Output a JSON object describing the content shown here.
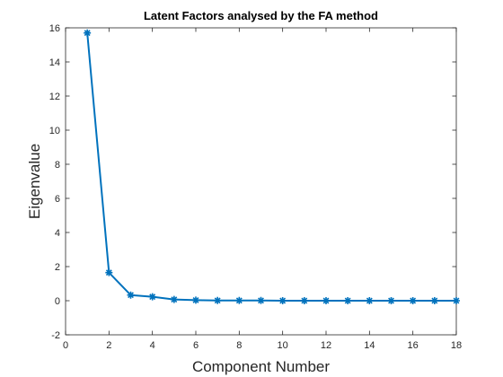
{
  "chart_data": {
    "type": "line",
    "title": "Latent Factors analysed by the FA method",
    "xlabel": "Component Number",
    "ylabel": "Eigenvalue",
    "xlim": [
      0,
      18
    ],
    "ylim": [
      -2,
      16
    ],
    "xticks": [
      0,
      2,
      4,
      6,
      8,
      10,
      12,
      14,
      16,
      18
    ],
    "yticks": [
      -2,
      0,
      2,
      4,
      6,
      8,
      10,
      12,
      14,
      16
    ],
    "grid": false,
    "marker": "asterisk",
    "series": [
      {
        "x": [
          1,
          2,
          3,
          4,
          5,
          6,
          7,
          8,
          9,
          10,
          11,
          12,
          13,
          14,
          15,
          16,
          17,
          18
        ],
        "values": [
          15.7,
          1.65,
          0.33,
          0.23,
          0.07,
          0.03,
          0.01,
          0.01,
          0.01,
          0.0,
          0.0,
          0.0,
          0.0,
          0.0,
          0.0,
          0.0,
          0.0,
          0.0
        ],
        "color": "#0072bd"
      }
    ]
  }
}
